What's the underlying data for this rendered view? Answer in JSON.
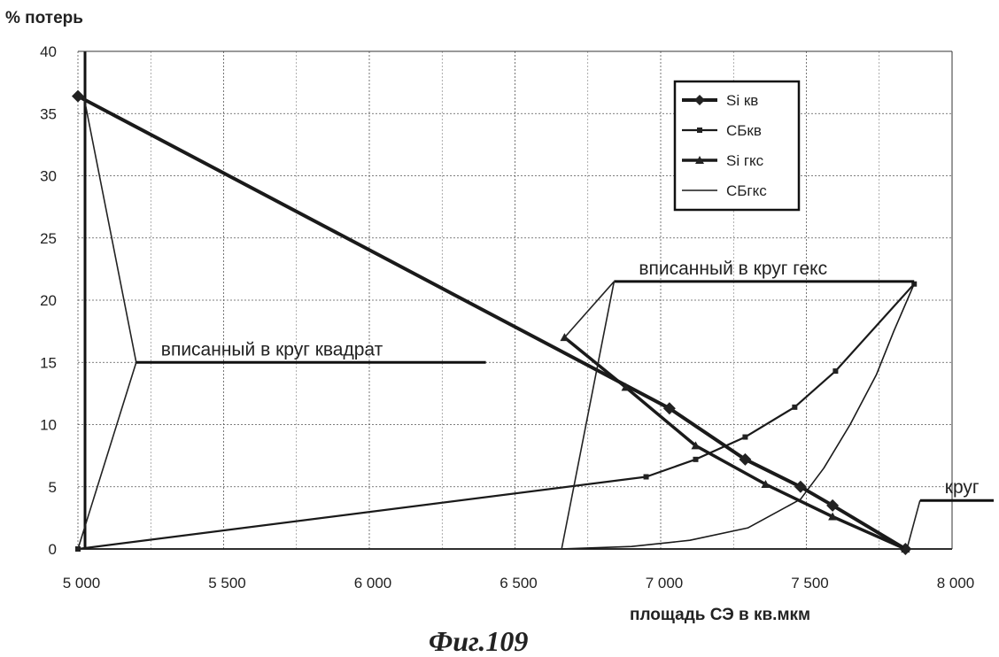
{
  "chart_data": {
    "type": "line",
    "ylabel": "% потерь",
    "xlabel": "площадь СЭ в кв.мкм",
    "caption": "Фиг.109",
    "xlim": [
      5000,
      8000
    ],
    "ylim": [
      0,
      40
    ],
    "x_ticks": [
      5000,
      5500,
      6000,
      6500,
      7000,
      7500,
      8000
    ],
    "x_tick_labels": [
      "5 000",
      "5 500",
      "6 000",
      "6 500",
      "7 000",
      "7 500",
      "8 000"
    ],
    "y_ticks": [
      0,
      5,
      10,
      15,
      20,
      25,
      30,
      35,
      40
    ],
    "y_tick_labels": [
      "0",
      "5",
      "10",
      "15",
      "20",
      "25",
      "30",
      "35",
      "40"
    ],
    "grid": true,
    "legend_position": "top-right",
    "series": [
      {
        "name": "Si кв",
        "marker": "diamond",
        "width": 4,
        "points": [
          [
            5000,
            36.4
          ],
          [
            7030,
            11.3
          ],
          [
            7290,
            7.2
          ],
          [
            7480,
            5.0
          ],
          [
            7590,
            3.5
          ],
          [
            7840,
            0
          ]
        ]
      },
      {
        "name": "СБкв",
        "marker": "square",
        "width": 2.2,
        "points": [
          [
            5000,
            0
          ],
          [
            6950,
            5.8
          ],
          [
            7120,
            7.2
          ],
          [
            7290,
            9.0
          ],
          [
            7460,
            11.4
          ],
          [
            7600,
            14.3
          ],
          [
            7870,
            21.3
          ]
        ]
      },
      {
        "name": "Si гкс",
        "marker": "triangle",
        "width": 3.5,
        "points": [
          [
            6670,
            17.0
          ],
          [
            6880,
            13.0
          ],
          [
            7120,
            8.3
          ],
          [
            7360,
            5.2
          ],
          [
            7590,
            2.6
          ],
          [
            7840,
            0
          ]
        ]
      },
      {
        "name": "СБгкс",
        "marker": "none",
        "width": 1.6,
        "points": [
          [
            6660,
            0
          ],
          [
            6900,
            0.2
          ],
          [
            7100,
            0.7
          ],
          [
            7300,
            1.7
          ],
          [
            7480,
            4.0
          ],
          [
            7560,
            6.5
          ],
          [
            7650,
            10.0
          ],
          [
            7740,
            14.0
          ],
          [
            7800,
            17.5
          ],
          [
            7870,
            21.3
          ]
        ]
      }
    ],
    "annotations": [
      {
        "text": "вписанный в круг квадрат",
        "anchor": [
          5200,
          15.0
        ],
        "line_end": [
          6400,
          15.0
        ],
        "leaders": [
          [
            [
              5200,
              15.0
            ],
            [
              5020,
              36.4
            ]
          ],
          [
            [
              5200,
              15.0
            ],
            [
              5000,
              0
            ]
          ]
        ]
      },
      {
        "text": "вписанный в круг гекс",
        "anchor": [
          6840,
          21.5
        ],
        "line_end": [
          7870,
          21.5
        ],
        "leaders": [
          [
            [
              6840,
              21.5
            ],
            [
              6670,
              17.0
            ]
          ],
          [
            [
              6840,
              21.5
            ],
            [
              6660,
              0
            ]
          ]
        ]
      },
      {
        "text": "круг",
        "anchor": [
          7890,
          3.9
        ],
        "line_end": [
          8170,
          3.9
        ],
        "leaders": [
          [
            [
              7890,
              3.9
            ],
            [
              7845,
              0
            ]
          ]
        ]
      }
    ]
  }
}
